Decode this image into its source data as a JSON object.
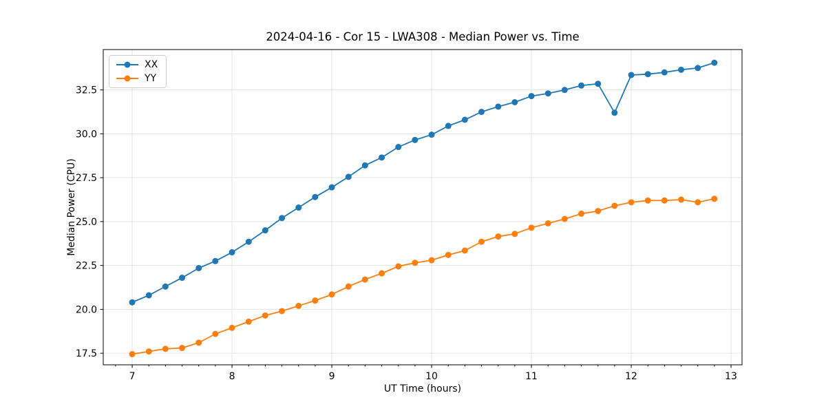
{
  "figure": {
    "background": "#ffffff",
    "grid_color": "#e3e3e3",
    "spine_color": "#000000",
    "tick_color": "#000000"
  },
  "chart_data": {
    "type": "line",
    "title": "2024-04-16 - Cor 15 - LWA308 - Median Power vs. Time",
    "xlabel": "UT Time (hours)",
    "ylabel": "Median Power (CPU)",
    "grid": true,
    "legend_position": "upper left",
    "xlim": [
      6.71,
      13.11
    ],
    "ylim": [
      16.84,
      34.8
    ],
    "xticks": [
      7,
      8,
      9,
      10,
      11,
      12,
      13
    ],
    "yticks": [
      17.5,
      20.0,
      22.5,
      25.0,
      27.5,
      30.0,
      32.5
    ],
    "minor_xtick_step": 0.16667,
    "x": [
      7.0,
      7.167,
      7.333,
      7.5,
      7.667,
      7.833,
      8.0,
      8.167,
      8.333,
      8.5,
      8.667,
      8.833,
      9.0,
      9.167,
      9.333,
      9.5,
      9.667,
      9.833,
      10.0,
      10.167,
      10.333,
      10.5,
      10.667,
      10.833,
      11.0,
      11.167,
      11.333,
      11.5,
      11.667,
      11.833,
      12.0,
      12.167,
      12.333,
      12.5,
      12.667,
      12.833
    ],
    "series": [
      {
        "name": "XX",
        "color": "#1f77b4",
        "values": [
          20.4,
          20.8,
          21.3,
          21.8,
          22.35,
          22.75,
          23.25,
          23.85,
          24.5,
          25.2,
          25.8,
          26.4,
          26.95,
          27.55,
          28.2,
          28.65,
          29.25,
          29.65,
          29.95,
          30.45,
          30.8,
          31.25,
          31.55,
          31.8,
          32.15,
          32.3,
          32.5,
          32.75,
          32.85,
          31.2,
          33.35,
          33.4,
          33.5,
          33.65,
          33.75,
          34.05
        ]
      },
      {
        "name": "YY",
        "color": "#ff7f0e",
        "values": [
          17.45,
          17.6,
          17.75,
          17.8,
          18.1,
          18.6,
          18.95,
          19.3,
          19.65,
          19.9,
          20.2,
          20.5,
          20.85,
          21.3,
          21.7,
          22.05,
          22.45,
          22.65,
          22.8,
          23.1,
          23.35,
          23.85,
          24.15,
          24.3,
          24.65,
          24.9,
          25.15,
          25.45,
          25.6,
          25.9,
          26.1,
          26.2,
          26.2,
          26.25,
          26.1,
          26.3
        ]
      }
    ]
  }
}
